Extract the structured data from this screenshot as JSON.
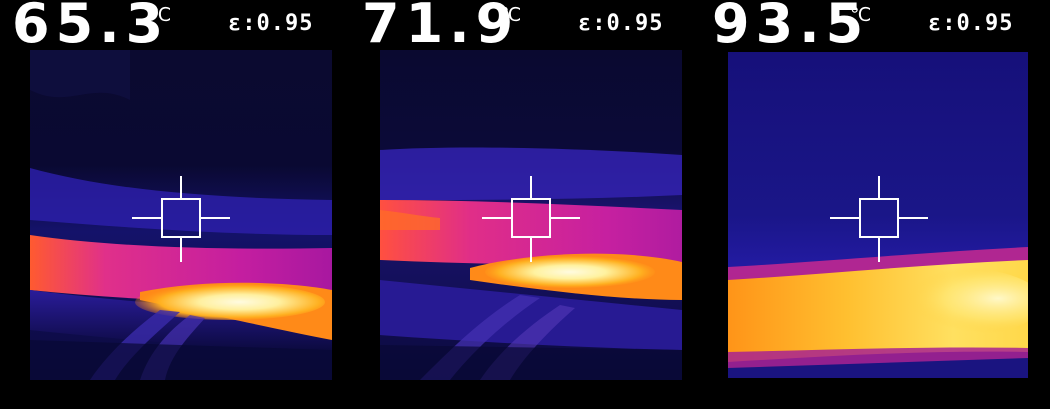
{
  "panels": [
    {
      "temperature": "65.3",
      "unit": "℃",
      "emissivity": "ε:0.95"
    },
    {
      "temperature": "71.9",
      "unit": "℃",
      "emissivity": "ε:0.95"
    },
    {
      "temperature": "93.5",
      "unit": "℃",
      "emissivity": "ε:0.95"
    }
  ],
  "palette": {
    "background": "#000000",
    "cold": "#0a0a3a",
    "cool": "#1c1a8c",
    "warm": "#c0208c",
    "hot": "#ff7a10",
    "hottest": "#fff4b0",
    "text": "#ffffff",
    "crosshair": "#ffffff"
  },
  "icons": {
    "crosshair": "crosshair-icon"
  }
}
